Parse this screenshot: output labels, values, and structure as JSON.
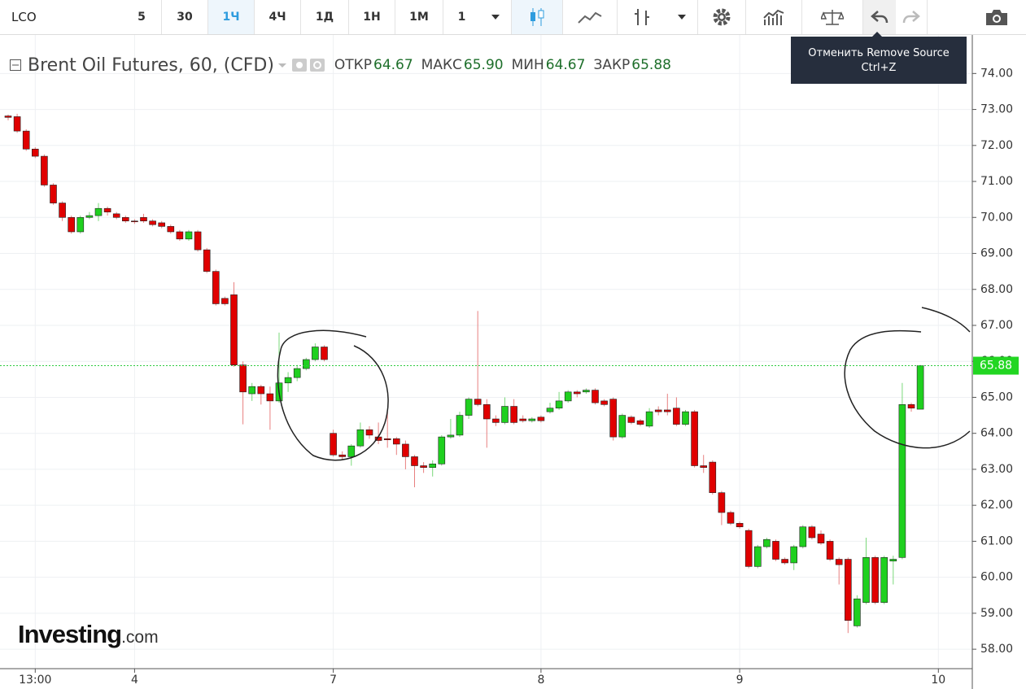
{
  "toolbar": {
    "symbol": "LCO",
    "intervals": [
      "5",
      "30",
      "1Ч",
      "4Ч",
      "1Д",
      "1Н",
      "1М"
    ],
    "range": "1",
    "tooltip": [
      "Отменить Remove Source",
      "Ctrl+Z"
    ]
  },
  "chart_data": {
    "type": "candlestick",
    "title": "Brent Oil Futures, 60, (CFD)",
    "ohlc_legend": [
      {
        "label": "ОТКР",
        "value": "64.67"
      },
      {
        "label": "МАКС",
        "value": "65.90"
      },
      {
        "label": "МИН",
        "value": "64.67"
      },
      {
        "label": "ЗАКР",
        "value": "65.88"
      }
    ],
    "categories": [
      null,
      null,
      null,
      "13:00",
      null,
      null,
      null,
      null,
      null,
      null,
      null,
      null,
      null,
      null,
      "4",
      null,
      null,
      null,
      null,
      null,
      null,
      null,
      null,
      null,
      null,
      null,
      null,
      null,
      null,
      null,
      null,
      null,
      null,
      null,
      null,
      null,
      "7",
      null,
      null,
      null,
      null,
      null,
      null,
      null,
      null,
      null,
      null,
      null,
      null,
      null,
      null,
      null,
      null,
      null,
      null,
      null,
      null,
      null,
      null,
      "8",
      null,
      null,
      null,
      null,
      null,
      null,
      null,
      null,
      null,
      null,
      null,
      null,
      null,
      null,
      null,
      null,
      null,
      null,
      null,
      null,
      null,
      "9",
      null,
      null,
      null,
      null,
      null,
      null,
      null,
      null,
      null,
      null,
      null,
      null,
      null,
      null,
      null,
      null,
      null,
      null,
      null,
      null,
      null,
      "10"
    ],
    "open": [
      72.82,
      72.8,
      72.4,
      71.9,
      71.7,
      70.9,
      70.4,
      70.0,
      69.6,
      70.0,
      70.05,
      70.25,
      70.1,
      70.0,
      69.9,
      70.0,
      69.9,
      69.85,
      69.75,
      69.6,
      69.4,
      69.6,
      69.1,
      68.5,
      67.75,
      67.85,
      65.9,
      65.1,
      65.3,
      65.1,
      64.9,
      65.4,
      65.55,
      65.8,
      66.05,
      66.4,
      64.0,
      63.4,
      63.35,
      63.65,
      64.1,
      63.9,
      63.85,
      63.85,
      63.7,
      63.35,
      63.1,
      63.05,
      63.15,
      63.9,
      63.95,
      64.5,
      64.95,
      64.8,
      64.4,
      64.3,
      64.75,
      64.4,
      64.35,
      64.45,
      64.6,
      64.7,
      64.9,
      65.15,
      65.15,
      65.2,
      64.9,
      64.95,
      63.9,
      64.45,
      64.35,
      64.2,
      64.65,
      64.65,
      64.7,
      64.25,
      64.6,
      63.1,
      63.2,
      62.35,
      61.8,
      61.5,
      61.3,
      60.3,
      60.85,
      61.0,
      60.5,
      60.4,
      60.85,
      61.4,
      61.2,
      61.0,
      60.5,
      60.5,
      58.65,
      59.3,
      60.55,
      59.3,
      60.45,
      60.55,
      64.8,
      64.67,
      null,
      null
    ],
    "high": [
      72.86,
      72.88,
      72.45,
      71.95,
      71.75,
      70.95,
      70.45,
      70.05,
      70.05,
      70.15,
      70.4,
      70.3,
      70.15,
      70.05,
      69.95,
      70.1,
      69.95,
      69.9,
      69.8,
      69.65,
      69.65,
      69.65,
      69.15,
      68.55,
      67.8,
      68.2,
      66.0,
      65.4,
      65.35,
      65.3,
      66.8,
      65.7,
      65.9,
      66.1,
      66.5,
      66.45,
      64.1,
      63.5,
      63.7,
      64.3,
      64.2,
      64.3,
      64.6,
      63.9,
      63.8,
      63.4,
      63.2,
      63.25,
      63.95,
      64.4,
      64.6,
      65.0,
      67.4,
      64.95,
      64.5,
      65.0,
      64.95,
      64.5,
      64.45,
      64.5,
      64.85,
      65.15,
      65.2,
      65.2,
      65.25,
      65.25,
      64.95,
      65.0,
      64.55,
      64.5,
      64.4,
      64.7,
      64.75,
      65.1,
      65.0,
      64.65,
      64.65,
      63.4,
      63.25,
      62.4,
      61.85,
      61.55,
      61.35,
      60.9,
      61.1,
      61.05,
      60.55,
      60.9,
      61.45,
      61.45,
      61.3,
      61.05,
      60.55,
      60.55,
      59.5,
      61.1,
      60.6,
      60.6,
      60.6,
      65.4,
      64.85,
      65.9,
      null,
      null
    ],
    "low": [
      72.7,
      72.35,
      71.85,
      71.65,
      70.85,
      70.35,
      69.9,
      69.55,
      69.55,
      69.95,
      69.9,
      70.05,
      69.95,
      69.85,
      69.82,
      69.85,
      69.75,
      69.7,
      69.55,
      69.35,
      69.35,
      69.05,
      68.45,
      67.55,
      67.55,
      65.85,
      64.25,
      64.9,
      64.8,
      64.1,
      64.85,
      65.15,
      65.45,
      65.75,
      66.0,
      66.0,
      63.35,
      63.25,
      63.1,
      63.6,
      63.85,
      63.7,
      63.6,
      63.4,
      63.0,
      62.5,
      62.9,
      62.8,
      63.1,
      63.85,
      63.9,
      64.4,
      64.75,
      63.6,
      64.2,
      64.25,
      64.25,
      64.3,
      64.3,
      64.3,
      64.55,
      64.65,
      64.85,
      65.0,
      65.1,
      64.8,
      64.75,
      63.8,
      63.85,
      64.25,
      64.2,
      64.15,
      64.5,
      64.5,
      64.2,
      64.2,
      63.05,
      62.9,
      62.3,
      61.45,
      61.45,
      61.35,
      60.25,
      60.25,
      60.8,
      60.45,
      60.35,
      60.2,
      60.8,
      61.05,
      60.9,
      60.45,
      59.8,
      58.45,
      58.6,
      59.25,
      59.25,
      59.25,
      59.8,
      60.5,
      64.6,
      64.67,
      null,
      null
    ],
    "close": [
      72.78,
      72.4,
      71.9,
      71.7,
      70.9,
      70.4,
      70.0,
      69.6,
      70.0,
      70.05,
      70.25,
      70.15,
      70.0,
      69.9,
      69.88,
      69.9,
      69.8,
      69.75,
      69.6,
      69.4,
      69.6,
      69.1,
      68.5,
      67.6,
      67.6,
      65.9,
      65.15,
      65.3,
      65.1,
      64.9,
      65.4,
      65.55,
      65.8,
      66.05,
      66.4,
      66.05,
      63.4,
      63.35,
      63.65,
      64.1,
      63.95,
      63.8,
      63.82,
      63.7,
      63.35,
      63.1,
      63.05,
      63.15,
      63.9,
      63.95,
      64.5,
      64.95,
      64.8,
      64.4,
      64.3,
      64.75,
      64.3,
      64.35,
      64.4,
      64.35,
      64.7,
      64.9,
      65.15,
      65.1,
      65.2,
      64.85,
      64.8,
      63.9,
      64.5,
      64.3,
      64.25,
      64.6,
      64.6,
      64.6,
      64.25,
      64.6,
      63.1,
      63.05,
      62.35,
      61.8,
      61.5,
      61.4,
      60.3,
      60.85,
      61.05,
      60.5,
      60.4,
      60.85,
      61.4,
      61.1,
      60.95,
      60.5,
      60.35,
      58.8,
      59.4,
      60.55,
      59.3,
      60.55,
      60.5,
      64.8,
      64.7,
      65.88,
      null,
      null
    ],
    "up_color": "#1fd01f",
    "down_color": "#e00000",
    "ylim": [
      57.46,
      75.07
    ],
    "yticks": [
      {
        "value": 58,
        "label": "58.00"
      },
      {
        "value": 59,
        "label": "59.00"
      },
      {
        "value": 60,
        "label": "60.00"
      },
      {
        "value": 61,
        "label": "61.00"
      },
      {
        "value": 62,
        "label": "62.00"
      },
      {
        "value": 63,
        "label": "63.00"
      },
      {
        "value": 64,
        "label": "64.00"
      },
      {
        "value": 65,
        "label": "65.00"
      },
      {
        "value": 66,
        "label": "66.00"
      },
      {
        "value": 67,
        "label": "67.00"
      },
      {
        "value": 68,
        "label": "68.00"
      },
      {
        "value": 69,
        "label": "69.00"
      },
      {
        "value": 70,
        "label": "70.00"
      },
      {
        "value": 71,
        "label": "71.00"
      },
      {
        "value": 72,
        "label": "72.00"
      },
      {
        "value": 73,
        "label": "73.00"
      },
      {
        "value": 74,
        "label": "74.00"
      }
    ],
    "last_price_label": "65.88",
    "grid": true
  },
  "logo": {
    "brand": "Investing",
    "suffix": ".com"
  }
}
